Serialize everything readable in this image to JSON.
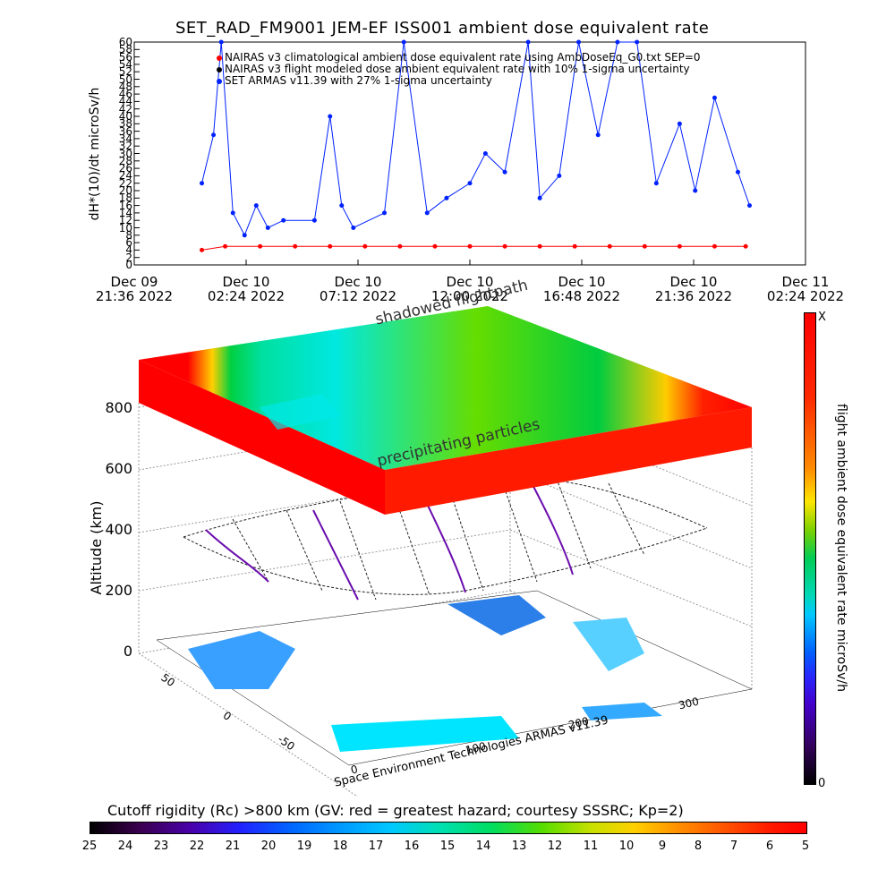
{
  "title": "SET_RAD_FM9001  JEM-EF ISS001 ambient dose equivalent rate",
  "top_ylabel": "dH*(10)/dt microSv/h",
  "legend": [
    {
      "label": "NAIRAS v3 climatological ambient dose equivalent rate using AmbDoseEq_G0.txt SEP=0",
      "color": "#ff0000"
    },
    {
      "label": "NAIRAS v3 flight modeled dose ambient equivalent rate with 10% 1-sigma uncertainty",
      "color": "#000000"
    },
    {
      "label": "SET ARMAS v11.39 with 27% 1-sigma uncertainty",
      "color": "#0022ff"
    }
  ],
  "x_ticks": [
    {
      "line1": "Dec 09",
      "line2": "21:36 2022"
    },
    {
      "line1": "Dec 10",
      "line2": "02:24 2022"
    },
    {
      "line1": "Dec 10",
      "line2": "07:12 2022"
    },
    {
      "line1": "Dec 10",
      "line2": "12:00 2022"
    },
    {
      "line1": "Dec 10",
      "line2": "16:48 2022"
    },
    {
      "line1": "Dec 10",
      "line2": "21:36 2022"
    },
    {
      "line1": "Dec 11",
      "line2": "02:24 2022"
    }
  ],
  "alt_label": "Altitude (km)",
  "alt_ticks": [
    "0",
    "200",
    "400",
    "600",
    "800"
  ],
  "lat_ticks": [
    "50",
    "0",
    "-50"
  ],
  "lon_ticks": [
    "0",
    "100",
    "200",
    "300"
  ],
  "shadowed_label": "shadowed flightpath",
  "precip_label": "precipitating particles",
  "credit": "Space Environment Technologies ARMAS v11.39",
  "colorbar_label": "flight ambient dose equivalent rate microSv/h",
  "colorbar_top": "X",
  "colorbar_bottom": "0",
  "rc_label": "Cutoff rigidity (Rc) >800 km (GV: red = greatest hazard; courtesy SSSRC; Kp=2)",
  "rc_ticks": [
    "25",
    "24",
    "23",
    "22",
    "21",
    "20",
    "19",
    "18",
    "17",
    "16",
    "15",
    "14",
    "13",
    "12",
    "11",
    "10",
    "9",
    "8",
    "7",
    "6",
    "5"
  ],
  "chart_data": {
    "type": "line",
    "title": "SET_RAD_FM9001  JEM-EF ISS001 ambient dose equivalent rate",
    "ylabel": "dH*(10)/dt microSv/h",
    "ylim": [
      0,
      60
    ],
    "y_ticks": [
      "0",
      "2",
      "4",
      "6",
      "8",
      "10",
      "12",
      "14",
      "16",
      "18",
      "20",
      "22",
      "24",
      "26",
      "28",
      "30",
      "32",
      "34",
      "36",
      "38",
      "40",
      "42",
      "44",
      "46",
      "48",
      "50",
      "52",
      "54",
      "56",
      "58",
      "60"
    ],
    "xlim": [
      "2022-12-09T21:36",
      "2022-12-11T02:24"
    ],
    "legend_position": "top",
    "series": [
      {
        "name": "NAIRAS v3 climatological ambient dose equivalent rate using AmbDoseEq_G0.txt SEP=0",
        "color": "#ff0000",
        "x": [
          "2022-12-10T00:30",
          "2022-12-10T01:30",
          "2022-12-10T03:00",
          "2022-12-10T04:30",
          "2022-12-10T06:00",
          "2022-12-10T07:30",
          "2022-12-10T09:00",
          "2022-12-10T10:30",
          "2022-12-10T12:00",
          "2022-12-10T13:30",
          "2022-12-10T15:00",
          "2022-12-10T16:30",
          "2022-12-10T18:00",
          "2022-12-10T19:30",
          "2022-12-10T21:00",
          "2022-12-10T22:30",
          "2022-12-10T23:50"
        ],
        "y": [
          4,
          5,
          5,
          5,
          5,
          5,
          5,
          5,
          5,
          5,
          5,
          5,
          5,
          5,
          5,
          5,
          5
        ]
      },
      {
        "name": "SET ARMAS v11.39 with 27% 1-sigma uncertainty",
        "color": "#0022ff",
        "x": [
          "2022-12-10T00:30",
          "2022-12-10T01:00",
          "2022-12-10T01:20",
          "2022-12-10T01:50",
          "2022-12-10T02:20",
          "2022-12-10T02:50",
          "2022-12-10T03:20",
          "2022-12-10T04:00",
          "2022-12-10T05:20",
          "2022-12-10T06:00",
          "2022-12-10T06:30",
          "2022-12-10T07:00",
          "2022-12-10T08:20",
          "2022-12-10T09:10",
          "2022-12-10T10:10",
          "2022-12-10T11:00",
          "2022-12-10T12:00",
          "2022-12-10T12:40",
          "2022-12-10T13:30",
          "2022-12-10T14:30",
          "2022-12-10T15:00",
          "2022-12-10T15:50",
          "2022-12-10T16:40",
          "2022-12-10T17:30",
          "2022-12-10T18:20",
          "2022-12-10T19:10",
          "2022-12-10T20:00",
          "2022-12-10T21:00",
          "2022-12-10T21:40",
          "2022-12-10T22:30",
          "2022-12-10T23:30",
          "2022-12-11T00:00"
        ],
        "y": [
          22,
          35,
          60,
          14,
          8,
          16,
          10,
          12,
          12,
          40,
          16,
          10,
          14,
          60,
          14,
          18,
          22,
          30,
          25,
          60,
          18,
          24,
          60,
          35,
          60,
          60,
          22,
          38,
          20,
          45,
          25,
          16
        ]
      }
    ]
  }
}
